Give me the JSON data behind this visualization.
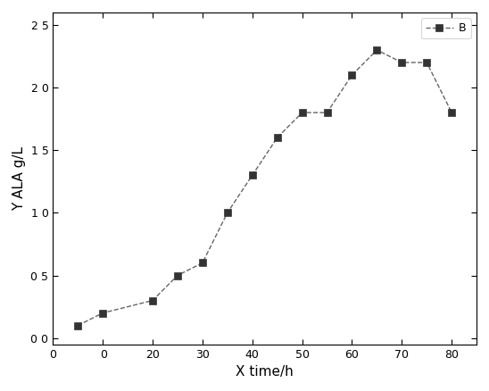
{
  "x": [
    5,
    10,
    20,
    25,
    30,
    35,
    40,
    45,
    50,
    55,
    60,
    65,
    70,
    75,
    80
  ],
  "y": [
    0.1,
    0.2,
    0.3,
    0.5,
    0.6,
    1.0,
    1.3,
    1.6,
    1.8,
    1.8,
    2.1,
    2.3,
    2.2,
    2.2,
    1.8
  ],
  "xlabel": "X time/h",
  "ylabel": "Y ALA g/L",
  "legend_label": "B",
  "xlim": [
    0,
    85
  ],
  "ylim": [
    -0.05,
    2.6
  ],
  "xticks": [
    0,
    10,
    20,
    30,
    40,
    50,
    60,
    70,
    80
  ],
  "yticks": [
    0.0,
    0.5,
    1.0,
    1.5,
    2.0,
    2.5
  ],
  "ytick_labels": [
    "0 0",
    "0 5",
    "1 0",
    "1 5",
    "2 0",
    "2 5"
  ],
  "xtick_labels": [
    "0",
    " 0",
    "20",
    "30",
    "40",
    "50",
    "60",
    "70",
    "80"
  ],
  "line_color": "#666666",
  "marker": "s",
  "marker_size": 6,
  "marker_color": "#333333",
  "line_style": "--",
  "line_width": 1.0,
  "background_color": "#ffffff",
  "plot_bg_color": "#f5f5f5",
  "legend_fontsize": 9,
  "axis_fontsize": 11,
  "tick_fontsize": 9,
  "figsize": [
    5.48,
    4.38
  ],
  "dpi": 100
}
